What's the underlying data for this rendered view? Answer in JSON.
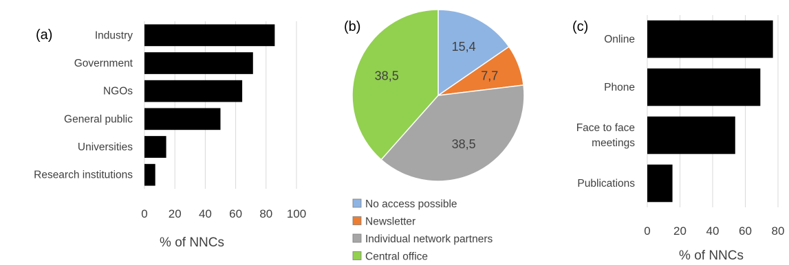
{
  "chart_data": [
    {
      "type": "bar",
      "orientation": "horizontal",
      "panel_label": "(a)",
      "categories": [
        "Industry",
        "Government",
        "NGOs",
        "General public",
        "Universities",
        "Research institutions"
      ],
      "values": [
        85.7,
        71.4,
        64.3,
        50.0,
        14.3,
        7.1
      ],
      "xlabel": "% of NNCs",
      "ylabel": "",
      "xlim": [
        0,
        100
      ],
      "xticks": [
        "0",
        "20",
        "40",
        "60",
        "80",
        "100"
      ],
      "grid": true,
      "bar_color": "#000000"
    },
    {
      "type": "pie",
      "panel_label": "(b)",
      "slices": [
        {
          "label": "No access possible",
          "value": 15.4,
          "text": "15,4",
          "color": "#8eb4e3"
        },
        {
          "label": "Newsletter",
          "value": 7.7,
          "text": "7,7",
          "color": "#ed7d31"
        },
        {
          "label": "Individual network partners",
          "value": 38.5,
          "text": "38,5",
          "color": "#a6a6a6"
        },
        {
          "label": "Central office",
          "value": 38.5,
          "text": "38,5",
          "color": "#92d050"
        }
      ],
      "legend_position": "bottom"
    },
    {
      "type": "bar",
      "orientation": "horizontal",
      "panel_label": "(c)",
      "categories": [
        "Online",
        "Phone",
        "Face to face meetings",
        "Publications"
      ],
      "category_lines": [
        [
          "Online"
        ],
        [
          "Phone"
        ],
        [
          "Face to face",
          "meetings"
        ],
        [
          "Publications"
        ]
      ],
      "values": [
        76.9,
        69.2,
        53.8,
        15.4
      ],
      "xlabel": "% of NNCs",
      "ylabel": "",
      "xlim": [
        0,
        80
      ],
      "xticks": [
        "0",
        "20",
        "40",
        "60",
        "80"
      ],
      "grid": true,
      "bar_color": "#000000"
    }
  ]
}
